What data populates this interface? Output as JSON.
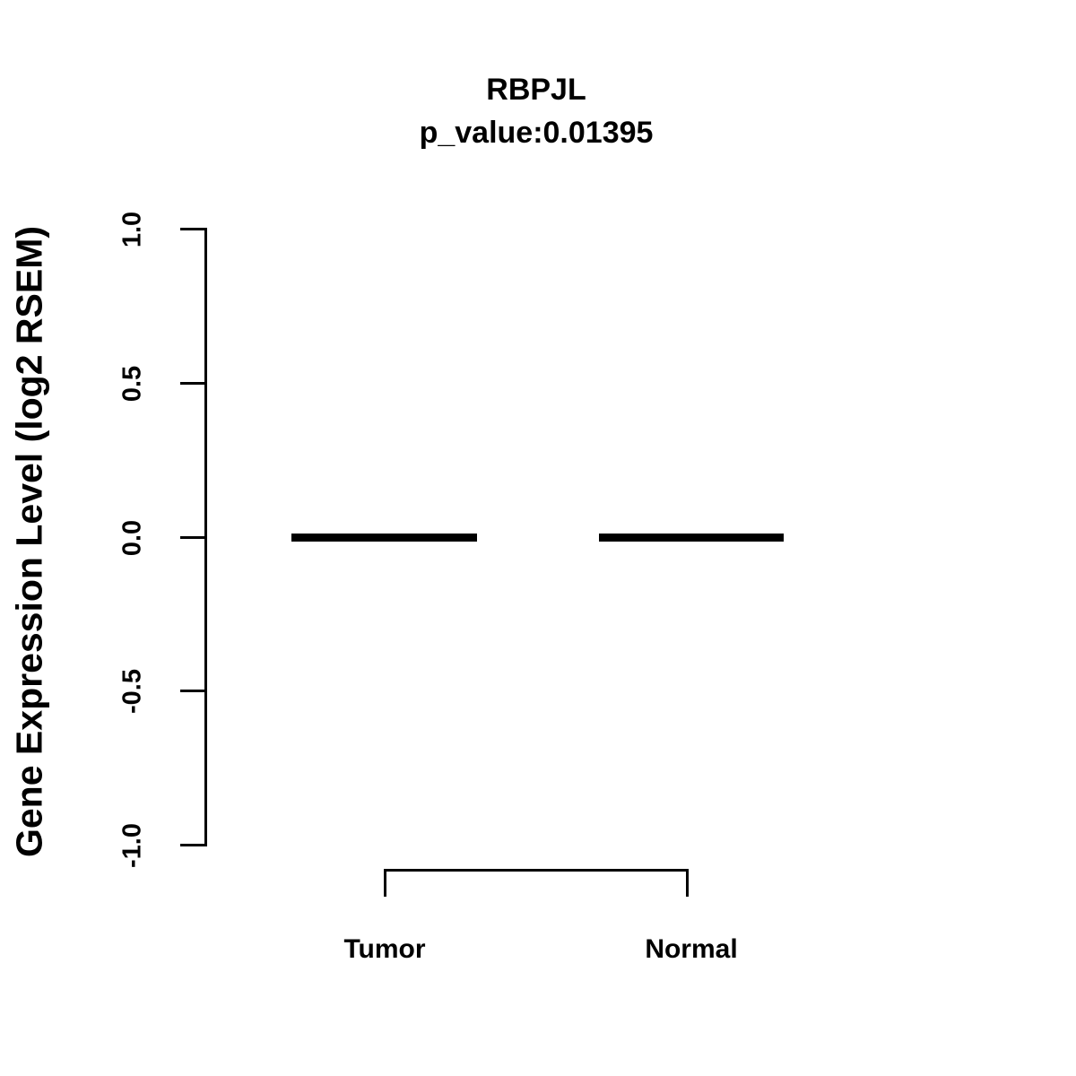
{
  "title": {
    "gene": "RBPJL",
    "p_value": "p_value:0.01395"
  },
  "y_axis": {
    "label": "Gene Expression Level (log2 RSEM)"
  },
  "chart_data": {
    "type": "boxplot",
    "title": "RBPJL",
    "subtitle": "p_value:0.01395",
    "p_value": 0.01395,
    "categories": [
      "Tumor",
      "Normal"
    ],
    "series": [
      {
        "name": "Tumor",
        "median": 0.0,
        "q1": 0.0,
        "q3": 0.0,
        "whisker_low": 0.0,
        "whisker_high": 0.0
      },
      {
        "name": "Normal",
        "median": 0.0,
        "q1": 0.0,
        "q3": 0.0,
        "whisker_low": 0.0,
        "whisker_high": 0.0
      }
    ],
    "xlabel": "",
    "ylabel": "Gene Expression Level (log2 RSEM)",
    "ylim": [
      -1.0,
      1.0
    ],
    "yticks": [
      1.0,
      0.5,
      0.0,
      -0.5,
      -1.0
    ],
    "ytick_labels": [
      "1.0",
      "0.5",
      "0.0",
      "-0.5",
      "-1.0"
    ],
    "grid": false,
    "legend_position": "none",
    "annotations": [
      {
        "type": "comparison-bracket",
        "between": [
          "Tumor",
          "Normal"
        ]
      }
    ],
    "colors": {
      "foreground": "#000000",
      "background": "#ffffff"
    }
  }
}
